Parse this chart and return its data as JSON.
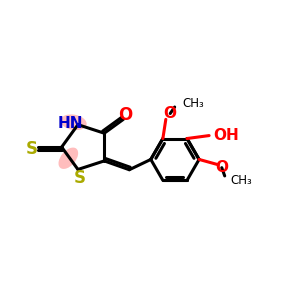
{
  "background_color": "#ffffff",
  "bond_color": "#000000",
  "S_color": "#aaaa00",
  "N_color": "#0000cc",
  "O_color": "#ff0000",
  "highlight_color": "#ff8888",
  "highlight_alpha": 0.55,
  "figsize": [
    3.0,
    3.0
  ],
  "dpi": 100,
  "xlim": [
    0,
    10
  ],
  "ylim": [
    0,
    10
  ]
}
